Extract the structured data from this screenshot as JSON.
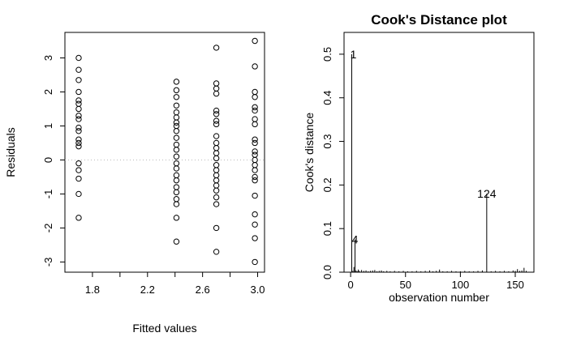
{
  "chart_data": [
    {
      "type": "scatter",
      "title": "",
      "xlabel": "Fitted values",
      "ylabel": "Residuals",
      "xlim": [
        1.6,
        3.05
      ],
      "ylim": [
        -3.3,
        3.75
      ],
      "xticks": [
        "1.8",
        "2.2",
        "2.6",
        "3.0"
      ],
      "yticks": [
        "-3",
        "-2",
        "-1",
        "0",
        "1",
        "2",
        "3"
      ],
      "reference_line": {
        "y": 0,
        "style": "dotted",
        "color": "#bbbbbb"
      },
      "points": [
        {
          "x": 1.7,
          "y": 3.0
        },
        {
          "x": 1.7,
          "y": 2.65
        },
        {
          "x": 1.7,
          "y": 2.35
        },
        {
          "x": 1.7,
          "y": 2.0
        },
        {
          "x": 1.7,
          "y": 1.75
        },
        {
          "x": 1.7,
          "y": 1.65
        },
        {
          "x": 1.7,
          "y": 1.5
        },
        {
          "x": 1.7,
          "y": 1.3
        },
        {
          "x": 1.7,
          "y": 1.2
        },
        {
          "x": 1.7,
          "y": 0.95
        },
        {
          "x": 1.7,
          "y": 0.85
        },
        {
          "x": 1.7,
          "y": 0.6
        },
        {
          "x": 1.7,
          "y": 0.5
        },
        {
          "x": 1.7,
          "y": 0.4
        },
        {
          "x": 1.7,
          "y": -0.1
        },
        {
          "x": 1.7,
          "y": -0.3
        },
        {
          "x": 1.7,
          "y": -0.55
        },
        {
          "x": 1.7,
          "y": -1.0
        },
        {
          "x": 1.7,
          "y": -1.7
        },
        {
          "x": 2.41,
          "y": 2.3
        },
        {
          "x": 2.41,
          "y": 2.05
        },
        {
          "x": 2.41,
          "y": 1.85
        },
        {
          "x": 2.41,
          "y": 1.6
        },
        {
          "x": 2.41,
          "y": 1.4
        },
        {
          "x": 2.41,
          "y": 1.25
        },
        {
          "x": 2.41,
          "y": 1.1
        },
        {
          "x": 2.41,
          "y": 1.0
        },
        {
          "x": 2.41,
          "y": 0.85
        },
        {
          "x": 2.41,
          "y": 0.65
        },
        {
          "x": 2.41,
          "y": 0.45
        },
        {
          "x": 2.41,
          "y": 0.3
        },
        {
          "x": 2.41,
          "y": 0.1
        },
        {
          "x": 2.41,
          "y": -0.1
        },
        {
          "x": 2.41,
          "y": -0.25
        },
        {
          "x": 2.41,
          "y": -0.45
        },
        {
          "x": 2.41,
          "y": -0.6
        },
        {
          "x": 2.41,
          "y": -0.8
        },
        {
          "x": 2.41,
          "y": -0.95
        },
        {
          "x": 2.41,
          "y": -1.15
        },
        {
          "x": 2.41,
          "y": -1.3
        },
        {
          "x": 2.41,
          "y": -1.7
        },
        {
          "x": 2.41,
          "y": -2.4
        },
        {
          "x": 2.7,
          "y": 3.3
        },
        {
          "x": 2.7,
          "y": 2.25
        },
        {
          "x": 2.7,
          "y": 2.1
        },
        {
          "x": 2.7,
          "y": 1.95
        },
        {
          "x": 2.7,
          "y": 1.45
        },
        {
          "x": 2.7,
          "y": 1.35
        },
        {
          "x": 2.7,
          "y": 1.15
        },
        {
          "x": 2.7,
          "y": 1.05
        },
        {
          "x": 2.7,
          "y": 0.7
        },
        {
          "x": 2.7,
          "y": 0.5
        },
        {
          "x": 2.7,
          "y": 0.35
        },
        {
          "x": 2.7,
          "y": 0.2
        },
        {
          "x": 2.7,
          "y": 0.05
        },
        {
          "x": 2.7,
          "y": -0.15
        },
        {
          "x": 2.7,
          "y": -0.3
        },
        {
          "x": 2.7,
          "y": -0.45
        },
        {
          "x": 2.7,
          "y": -0.6
        },
        {
          "x": 2.7,
          "y": -0.75
        },
        {
          "x": 2.7,
          "y": -0.9
        },
        {
          "x": 2.7,
          "y": -1.1
        },
        {
          "x": 2.7,
          "y": -1.3
        },
        {
          "x": 2.7,
          "y": -2.0
        },
        {
          "x": 2.7,
          "y": -2.7
        },
        {
          "x": 2.98,
          "y": 3.5
        },
        {
          "x": 2.98,
          "y": 2.75
        },
        {
          "x": 2.98,
          "y": 2.0
        },
        {
          "x": 2.98,
          "y": 1.85
        },
        {
          "x": 2.98,
          "y": 1.55
        },
        {
          "x": 2.98,
          "y": 1.45
        },
        {
          "x": 2.98,
          "y": 1.2
        },
        {
          "x": 2.98,
          "y": 1.05
        },
        {
          "x": 2.98,
          "y": 0.6
        },
        {
          "x": 2.98,
          "y": 0.5
        },
        {
          "x": 2.98,
          "y": 0.25
        },
        {
          "x": 2.98,
          "y": 0.15
        },
        {
          "x": 2.98,
          "y": 0.0
        },
        {
          "x": 2.98,
          "y": -0.15
        },
        {
          "x": 2.98,
          "y": -0.3
        },
        {
          "x": 2.98,
          "y": -0.5
        },
        {
          "x": 2.98,
          "y": -0.6
        },
        {
          "x": 2.98,
          "y": -1.05
        },
        {
          "x": 2.98,
          "y": -1.6
        },
        {
          "x": 2.98,
          "y": -1.9
        },
        {
          "x": 2.98,
          "y": -2.3
        },
        {
          "x": 2.98,
          "y": -3.0
        }
      ]
    },
    {
      "type": "bar",
      "subtype": "histogram-spikes",
      "title": "Cook's Distance plot",
      "xlabel": "observation number",
      "ylabel": "Cook's distance",
      "xlim": [
        -6,
        167
      ],
      "ylim": [
        0,
        0.55
      ],
      "xticks": [
        "0",
        "50",
        "100",
        "150"
      ],
      "yticks": [
        "0.0",
        "0.1",
        "0.2",
        "0.3",
        "0.4",
        "0.5"
      ],
      "annotations": [
        {
          "x": 1,
          "y": 0.5,
          "label": "1"
        },
        {
          "x": 4,
          "y": 0.075,
          "label": "4"
        },
        {
          "x": 124,
          "y": 0.18,
          "label": "124"
        }
      ],
      "spikes": [
        {
          "x": 1,
          "y": 0.5
        },
        {
          "x": 2,
          "y": 0.003
        },
        {
          "x": 3,
          "y": 0.012
        },
        {
          "x": 4,
          "y": 0.075
        },
        {
          "x": 5,
          "y": 0.004
        },
        {
          "x": 6,
          "y": 0.002
        },
        {
          "x": 7,
          "y": 0.006
        },
        {
          "x": 8,
          "y": 0.003
        },
        {
          "x": 10,
          "y": 0.005
        },
        {
          "x": 12,
          "y": 0.003
        },
        {
          "x": 14,
          "y": 0.004
        },
        {
          "x": 16,
          "y": 0.002
        },
        {
          "x": 18,
          "y": 0.003
        },
        {
          "x": 20,
          "y": 0.004
        },
        {
          "x": 22,
          "y": 0.005
        },
        {
          "x": 24,
          "y": 0.002
        },
        {
          "x": 26,
          "y": 0.003
        },
        {
          "x": 28,
          "y": 0.004
        },
        {
          "x": 30,
          "y": 0.002
        },
        {
          "x": 33,
          "y": 0.003
        },
        {
          "x": 36,
          "y": 0.002
        },
        {
          "x": 40,
          "y": 0.003
        },
        {
          "x": 44,
          "y": 0.002
        },
        {
          "x": 48,
          "y": 0.003
        },
        {
          "x": 52,
          "y": 0.002
        },
        {
          "x": 56,
          "y": 0.002
        },
        {
          "x": 60,
          "y": 0.003
        },
        {
          "x": 64,
          "y": 0.002
        },
        {
          "x": 68,
          "y": 0.003
        },
        {
          "x": 72,
          "y": 0.004
        },
        {
          "x": 75,
          "y": 0.002
        },
        {
          "x": 78,
          "y": 0.003
        },
        {
          "x": 81,
          "y": 0.006
        },
        {
          "x": 84,
          "y": 0.002
        },
        {
          "x": 88,
          "y": 0.002
        },
        {
          "x": 92,
          "y": 0.003
        },
        {
          "x": 96,
          "y": 0.002
        },
        {
          "x": 100,
          "y": 0.002
        },
        {
          "x": 104,
          "y": 0.003
        },
        {
          "x": 108,
          "y": 0.002
        },
        {
          "x": 112,
          "y": 0.002
        },
        {
          "x": 116,
          "y": 0.003
        },
        {
          "x": 120,
          "y": 0.004
        },
        {
          "x": 124,
          "y": 0.18
        },
        {
          "x": 128,
          "y": 0.002
        },
        {
          "x": 132,
          "y": 0.003
        },
        {
          "x": 136,
          "y": 0.002
        },
        {
          "x": 140,
          "y": 0.003
        },
        {
          "x": 144,
          "y": 0.002
        },
        {
          "x": 148,
          "y": 0.004
        },
        {
          "x": 150,
          "y": 0.003
        },
        {
          "x": 152,
          "y": 0.007
        },
        {
          "x": 154,
          "y": 0.003
        },
        {
          "x": 156,
          "y": 0.004
        },
        {
          "x": 158,
          "y": 0.01
        },
        {
          "x": 160,
          "y": 0.003
        }
      ]
    }
  ]
}
